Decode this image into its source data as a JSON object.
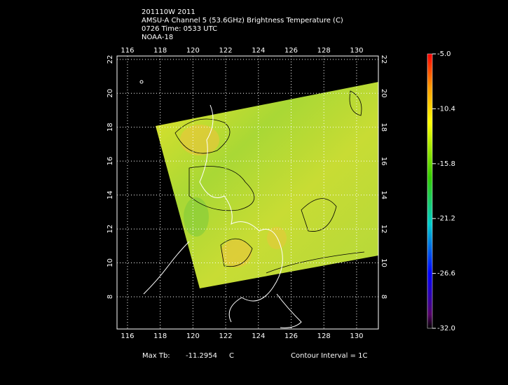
{
  "header": {
    "lines": [
      "201110W 2011",
      "AMSU-A Channel 5 (53.6GHz) Brightness Temperature (C)",
      "0726 Time: 0533 UTC",
      "NOAA-18"
    ]
  },
  "map": {
    "xlim": [
      115.36,
      131.33
    ],
    "ylim": [
      6.1,
      22.2
    ],
    "xticks": [
      116,
      118,
      120,
      122,
      124,
      126,
      128,
      130
    ],
    "yticks": [
      8,
      10,
      12,
      14,
      16,
      18,
      20,
      22
    ],
    "grid": true
  },
  "colorbar": {
    "lim": [
      -32,
      -5
    ],
    "ticks": [
      {
        "value": -5,
        "label": "-5.0"
      },
      {
        "value": -10.4,
        "label": "-10.4"
      },
      {
        "value": -15.8,
        "label": "-15.8"
      },
      {
        "value": -21.2,
        "label": "-21.2"
      },
      {
        "value": -26.6,
        "label": "-26.6"
      },
      {
        "value": -32,
        "label": "-32.0"
      }
    ]
  },
  "footer": {
    "max_label": "Max Tb:",
    "max_value": "-11.2954",
    "max_unit": "C",
    "contour": "Contour Interval = 1C"
  }
}
